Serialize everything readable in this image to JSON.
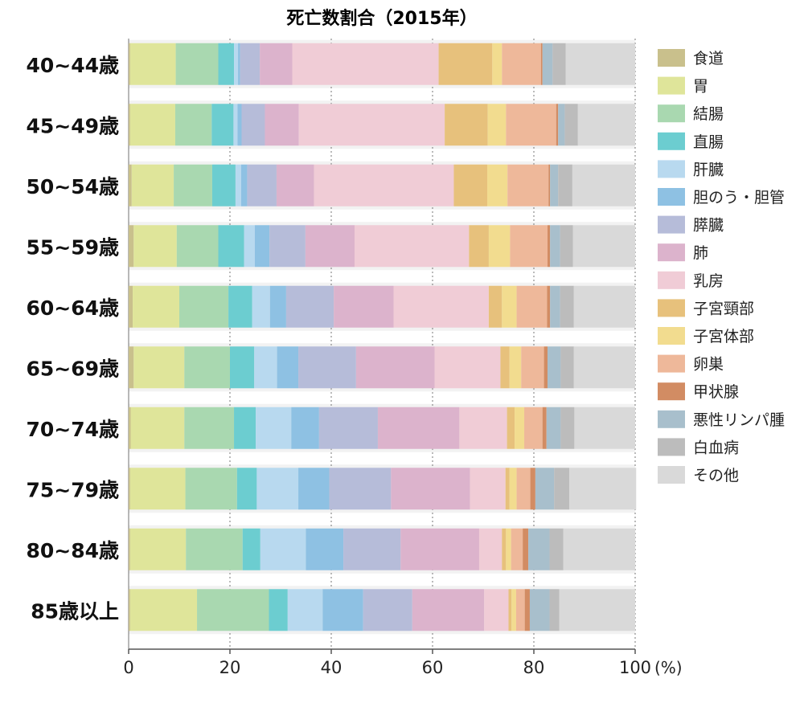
{
  "chart_data": {
    "type": "bar",
    "orientation": "horizontal",
    "stacked": true,
    "title": "死亡数割合（2015年）",
    "x_unit_label": "(%)",
    "xlim": [
      0,
      100
    ],
    "x_ticks": [
      "0",
      "20",
      "40",
      "60",
      "80",
      "100"
    ],
    "grid": "vertical dotted",
    "legend_position": "right",
    "categories": [
      "40~44歳",
      "45~49歳",
      "50~54歳",
      "55~59歳",
      "60~64歳",
      "65~69歳",
      "70~74歳",
      "75~79歳",
      "80~84歳",
      "85歳以上"
    ],
    "series": [
      {
        "name": "食道",
        "color": "#c9c08c",
        "values": [
          0.3,
          0.3,
          0.6,
          1.0,
          0.8,
          1.0,
          0.4,
          0.3,
          0.3,
          0.3
        ]
      },
      {
        "name": "胃",
        "color": "#dfe59a",
        "values": [
          9.0,
          8.9,
          8.3,
          8.5,
          9.2,
          10.0,
          10.6,
          10.9,
          11.0,
          13.2
        ]
      },
      {
        "name": "結腸",
        "color": "#a9d8b0",
        "values": [
          8.4,
          7.2,
          7.6,
          8.2,
          9.7,
          9.0,
          9.8,
          10.2,
          11.2,
          14.2
        ]
      },
      {
        "name": "直腸",
        "color": "#6ccdd0",
        "values": [
          3.1,
          4.3,
          4.6,
          5.1,
          4.7,
          4.8,
          4.3,
          3.9,
          3.5,
          3.7
        ]
      },
      {
        "name": "肝臓",
        "color": "#b8d9ef",
        "values": [
          0.8,
          0.8,
          1.1,
          2.1,
          3.5,
          4.5,
          7.0,
          8.2,
          9.0,
          6.9
        ]
      },
      {
        "name": "胆のう・胆管",
        "color": "#8ec1e3",
        "values": [
          0.4,
          0.8,
          1.2,
          2.9,
          3.2,
          4.2,
          5.5,
          6.1,
          7.4,
          8.0
        ]
      },
      {
        "name": "膵臓",
        "color": "#b6bcd9",
        "values": [
          3.9,
          4.6,
          5.8,
          7.1,
          9.4,
          11.4,
          11.6,
          12.2,
          11.3,
          9.7
        ]
      },
      {
        "name": "肺",
        "color": "#dcb3cc",
        "values": [
          6.4,
          6.7,
          7.4,
          9.7,
          11.8,
          15.5,
          16.1,
          15.6,
          15.5,
          14.2
        ]
      },
      {
        "name": "乳房",
        "color": "#f0ccd6",
        "values": [
          28.9,
          28.8,
          27.6,
          22.6,
          18.8,
          13.0,
          9.4,
          7.0,
          4.5,
          4.8
        ]
      },
      {
        "name": "子宮頸部",
        "color": "#e7c17c",
        "values": [
          10.6,
          8.5,
          6.6,
          3.9,
          2.6,
          1.8,
          1.5,
          0.8,
          0.8,
          0.6
        ]
      },
      {
        "name": "子宮体部",
        "color": "#f2dc8f",
        "values": [
          1.9,
          3.6,
          4.0,
          4.2,
          2.9,
          2.3,
          1.9,
          1.4,
          1.0,
          0.9
        ]
      },
      {
        "name": "卵巣",
        "color": "#eeb89a",
        "values": [
          7.7,
          9.9,
          8.1,
          7.4,
          6.0,
          4.5,
          3.6,
          2.7,
          2.3,
          1.7
        ]
      },
      {
        "name": "甲状腺",
        "color": "#d28c63",
        "values": [
          0.3,
          0.4,
          0.3,
          0.5,
          0.6,
          0.7,
          0.8,
          1.0,
          1.1,
          1.0
        ]
      },
      {
        "name": "悪性リンパ腫",
        "color": "#a8bfcc",
        "values": [
          2.0,
          1.3,
          1.6,
          2.0,
          2.0,
          2.6,
          2.8,
          3.7,
          4.2,
          3.9
        ]
      },
      {
        "name": "白血病",
        "color": "#bcbcbc",
        "values": [
          2.6,
          2.6,
          2.8,
          2.5,
          2.7,
          2.6,
          2.7,
          3.0,
          2.7,
          1.9
        ]
      },
      {
        "name": "その他",
        "color": "#d9d9d9",
        "values": [
          13.7,
          11.3,
          12.4,
          12.3,
          12.1,
          12.1,
          12.0,
          13.2,
          14.2,
          15.0
        ]
      }
    ]
  }
}
